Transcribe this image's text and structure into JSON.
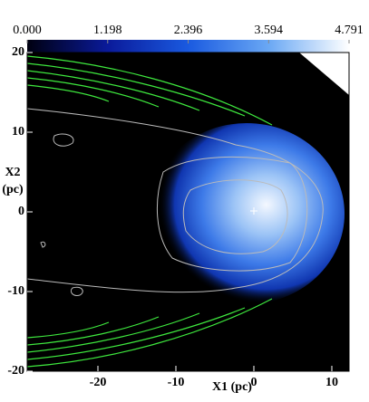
{
  "chart_data": {
    "type": "image",
    "xlabel": "X1 (pc)",
    "ylabel": "X2 (pc)",
    "xlim": [
      -29.07,
      12.21
    ],
    "ylim": [
      -20,
      20
    ],
    "xticks": [
      -20,
      -10,
      0,
      10
    ],
    "yticks": [
      20,
      10,
      0,
      -10,
      -20
    ],
    "colorbar": {
      "lim": [
        0,
        4.791
      ],
      "ticks": [
        {
          "value": 0,
          "label": "0.000"
        },
        1.198,
        2.396,
        3.594,
        4.791
      ]
    }
  }
}
